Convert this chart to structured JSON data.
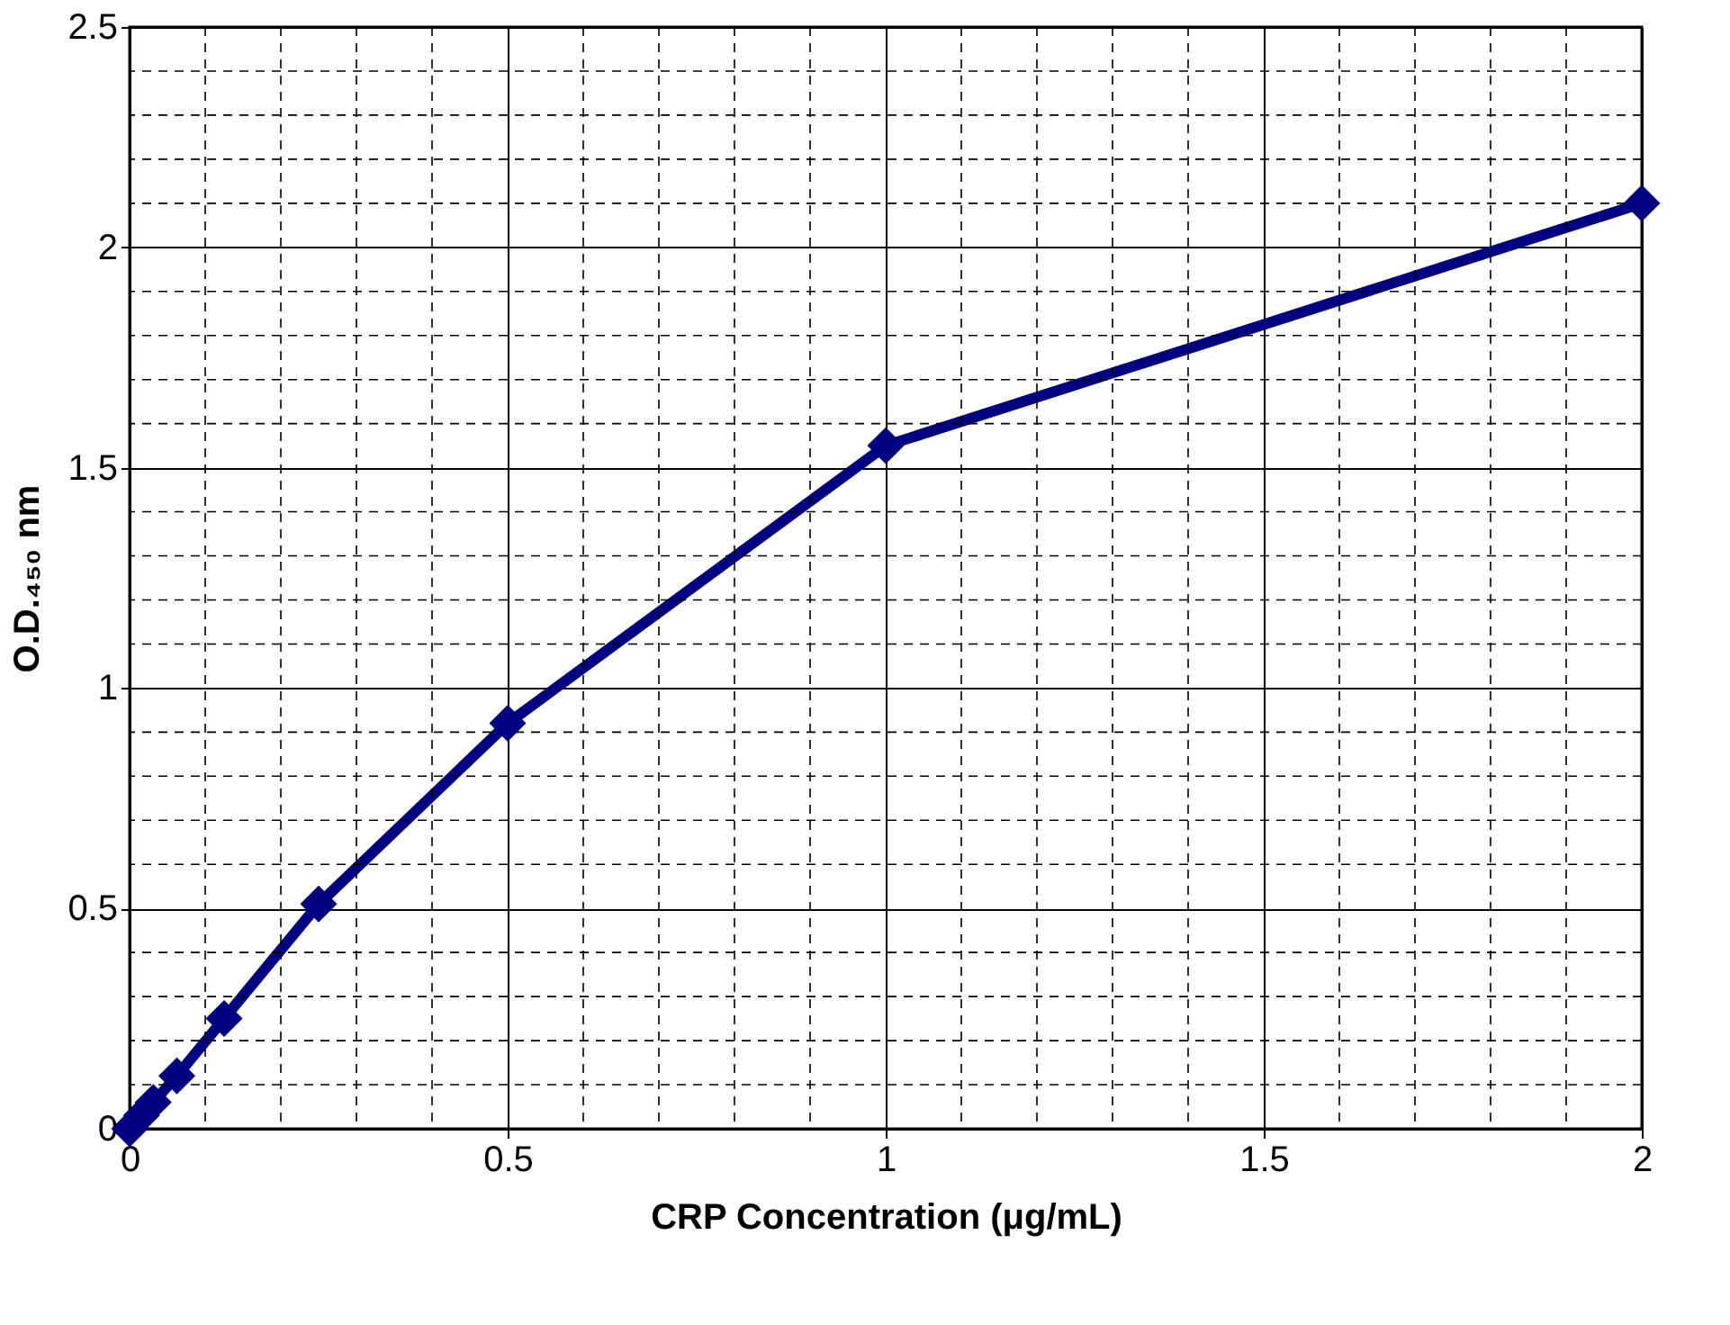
{
  "chart_data": {
    "type": "line",
    "xlabel": "CRP Concentration (μg/mL)",
    "ylabel": "O.D.₄₅₀ nm",
    "x": [
      0,
      0.015625,
      0.03125,
      0.0625,
      0.125,
      0.25,
      0.5,
      1,
      2
    ],
    "series": [
      {
        "color": "#000080",
        "values": [
          0,
          0.03,
          0.06,
          0.12,
          0.25,
          0.51,
          0.92,
          1.55,
          2.1
        ]
      }
    ],
    "xlim": [
      0,
      2
    ],
    "xticks": [
      0,
      0.5,
      1,
      1.5,
      2
    ],
    "ylim": [
      0,
      2.5
    ],
    "yticks": [
      0,
      0.5,
      1,
      1.5,
      2,
      2.5
    ],
    "grid": true,
    "marker": "diamond",
    "line_style": "solid"
  }
}
